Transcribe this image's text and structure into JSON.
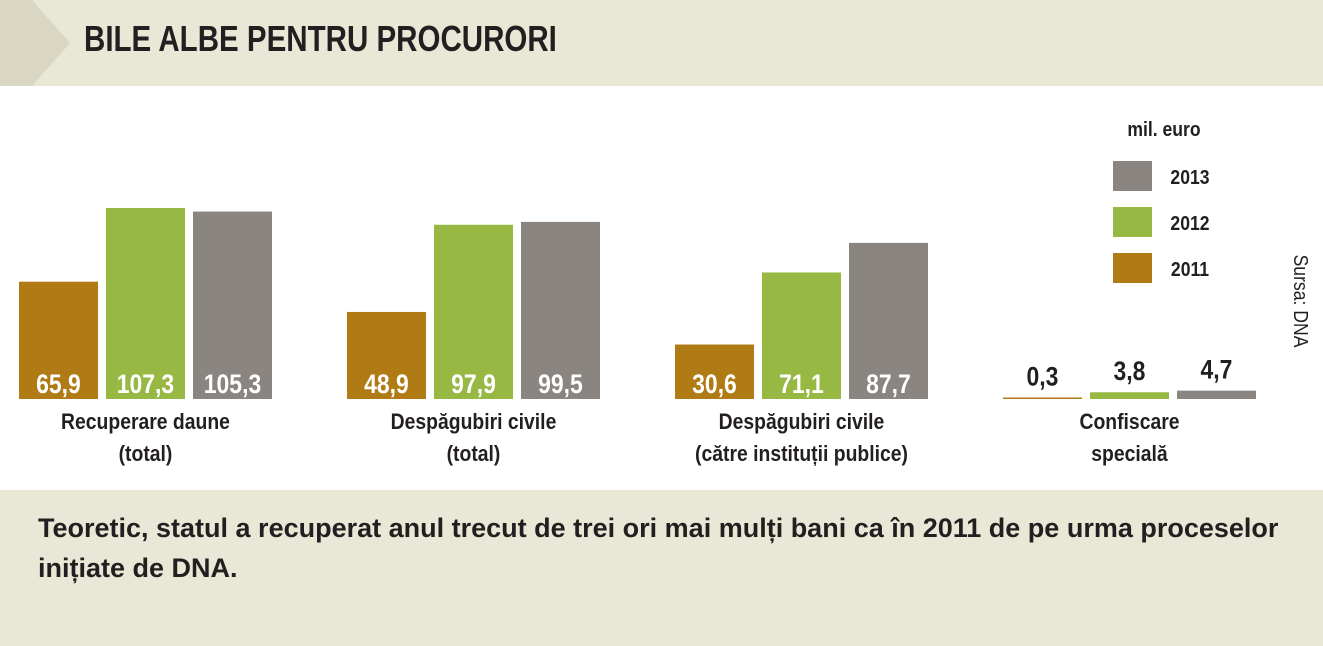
{
  "header": {
    "title": "BILE ALBE PENTRU PROCURORI"
  },
  "colors": {
    "2011": "#b07a14",
    "2012": "#97b943",
    "2013": "#8a8581",
    "header_bg": "#e9e7d6",
    "header_arrow": "#d4d1bc",
    "panel_bg": "#ffffff",
    "text": "#231f20"
  },
  "chart_data": {
    "type": "bar",
    "unit": "mil. euro",
    "categories": [
      [
        "Recuperare daune",
        "(total)"
      ],
      [
        "Despăgubiri civile",
        "(total)"
      ],
      [
        "Despăgubiri civile",
        "(către instituții publice)"
      ],
      [
        "Confiscare",
        "specială"
      ]
    ],
    "series": [
      {
        "name": "2011",
        "values": [
          65.9,
          48.9,
          30.6,
          0.3
        ],
        "labels": [
          "65,9",
          "48,9",
          "30,6",
          "0,3"
        ]
      },
      {
        "name": "2012",
        "values": [
          107.3,
          97.9,
          71.1,
          3.8
        ],
        "labels": [
          "107,3",
          "97,9",
          "71,1",
          "3,8"
        ]
      },
      {
        "name": "2013",
        "values": [
          105.3,
          99.5,
          87.7,
          4.7
        ],
        "labels": [
          "105,3",
          "99,5",
          "87,7",
          "4,7"
        ]
      }
    ],
    "legend": {
      "title": "mil. euro",
      "entries": [
        "2013",
        "2012",
        "2011"
      ],
      "placement": "top-right"
    },
    "source": "Sursa: DNA",
    "ylim": [
      0,
      110
    ],
    "grid": false
  },
  "caption": "Teoretic, statul a recuperat anul trecut de trei ori mai mulți bani ca în 2011 de pe urma proceselor inițiate de DNA."
}
